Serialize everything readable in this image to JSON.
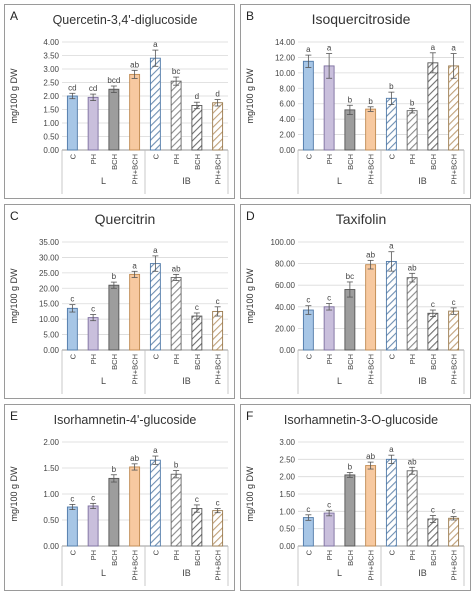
{
  "colors": {
    "C": "#a7c6e6",
    "PH": "#c9bfdc",
    "BCH": "#9d9d9d",
    "PH+BCH": "#f7c9a0",
    "IB_C": "#6f8fb2",
    "IB_PH": "#8c8c8c",
    "IB_BCH": "#6e6e6e",
    "IB_PHBCH": "#c0a17a",
    "frame": "#9a9a9a",
    "grid": "#d9d9d9"
  },
  "chart_data": [
    {
      "panel": "A",
      "title": "Quercetin-3,4'-diglucoside",
      "type": "bar",
      "ylabel": "mg/100 g DW",
      "ylim": [
        0,
        4.0
      ],
      "yticks": [
        "0.00",
        "0.50",
        "1.00",
        "1.50",
        "2.00",
        "2.50",
        "3.00",
        "3.50",
        "4.00"
      ],
      "categories": [
        "C",
        "PH",
        "BCH",
        "PH+BCH",
        "C",
        "PH",
        "BCH",
        "PH+BCH"
      ],
      "groups": [
        "L",
        "IB"
      ],
      "values": [
        2.0,
        1.95,
        2.25,
        2.8,
        3.4,
        2.55,
        1.65,
        1.75
      ],
      "errors": [
        0.1,
        0.12,
        0.12,
        0.15,
        0.3,
        0.15,
        0.12,
        0.12
      ],
      "letters": [
        "cd",
        "cd",
        "bcd",
        "ab",
        "a",
        "bc",
        "d",
        "d"
      ]
    },
    {
      "panel": "B",
      "title": "Isoquercitroside",
      "type": "bar",
      "ylabel": "mg/100 g DW",
      "ylim": [
        0,
        14.0
      ],
      "yticks": [
        "0.00",
        "2.00",
        "4.00",
        "6.00",
        "8.00",
        "10.00",
        "12.00",
        "14.00"
      ],
      "categories": [
        "C",
        "PH",
        "BCH",
        "PH+BCH",
        "C",
        "PH",
        "BCH",
        "PH+BCH"
      ],
      "groups": [
        "L",
        "IB"
      ],
      "values": [
        11.5,
        10.9,
        5.2,
        5.3,
        6.7,
        5.1,
        11.3,
        10.9
      ],
      "errors": [
        0.8,
        1.6,
        0.6,
        0.3,
        0.8,
        0.3,
        1.3,
        1.6
      ],
      "letters": [
        "a",
        "a",
        "b",
        "b",
        "b",
        "b",
        "a",
        "a"
      ]
    },
    {
      "panel": "C",
      "title": "Quercitrin",
      "type": "bar",
      "ylabel": "mg/100 g DW",
      "ylim": [
        0,
        35.0
      ],
      "yticks": [
        "0.00",
        "5.00",
        "10.00",
        "15.00",
        "20.00",
        "25.00",
        "30.00",
        "35.00"
      ],
      "categories": [
        "C",
        "PH",
        "BCH",
        "PH+BCH",
        "C",
        "PH",
        "BCH",
        "PH+BCH"
      ],
      "groups": [
        "L",
        "IB"
      ],
      "values": [
        13.5,
        10.5,
        21.0,
        24.5,
        28.0,
        23.5,
        11.0,
        12.5
      ],
      "errors": [
        1.2,
        1.0,
        1.0,
        1.0,
        2.5,
        1.0,
        1.0,
        1.5
      ],
      "letters": [
        "c",
        "c",
        "b",
        "a",
        "a",
        "ab",
        "c",
        "c"
      ]
    },
    {
      "panel": "D",
      "title": "Taxifolin",
      "type": "bar",
      "ylabel": "mg/100 g DW",
      "ylim": [
        0,
        100.0
      ],
      "yticks": [
        "0.00",
        "20.00",
        "40.00",
        "60.00",
        "80.00",
        "100.00"
      ],
      "categories": [
        "C",
        "PH",
        "BCH",
        "PH+BCH",
        "C",
        "PH",
        "BCH",
        "PH+BCH"
      ],
      "groups": [
        "L",
        "IB"
      ],
      "values": [
        37.0,
        40.0,
        56.0,
        79.0,
        82.0,
        67.0,
        34.0,
        36.0
      ],
      "errors": [
        4,
        3,
        7,
        4,
        9,
        4,
        3,
        3
      ],
      "letters": [
        "c",
        "c",
        "bc",
        "ab",
        "a",
        "ab",
        "c",
        "c"
      ]
    },
    {
      "panel": "E",
      "title": "Isorhamnetin-4'-glucoside",
      "type": "bar",
      "ylabel": "mg/100 g DW",
      "ylim": [
        0,
        2.0
      ],
      "yticks": [
        "0.00",
        "0.50",
        "1.00",
        "1.50",
        "2.00"
      ],
      "categories": [
        "C",
        "PH",
        "BCH",
        "PH+BCH",
        "C",
        "PH",
        "BCH",
        "PH+BCH"
      ],
      "groups": [
        "L",
        "IB"
      ],
      "values": [
        0.75,
        0.77,
        1.3,
        1.52,
        1.65,
        1.38,
        0.72,
        0.68
      ],
      "errors": [
        0.05,
        0.05,
        0.07,
        0.06,
        0.08,
        0.07,
        0.07,
        0.04
      ],
      "letters": [
        "c",
        "c",
        "b",
        "ab",
        "a",
        "b",
        "c",
        "c"
      ]
    },
    {
      "panel": "F",
      "title": "Isorhamnetin-3-O-glucoside",
      "type": "bar",
      "ylabel": "mg/100 g DW",
      "ylim": [
        0,
        3.0
      ],
      "yticks": [
        "0.00",
        "0.50",
        "1.00",
        "1.50",
        "2.00",
        "2.50",
        "3.00"
      ],
      "categories": [
        "C",
        "PH",
        "BCH",
        "PH+BCH",
        "C",
        "PH",
        "BCH",
        "PH+BCH"
      ],
      "groups": [
        "L",
        "IB"
      ],
      "values": [
        0.82,
        0.95,
        2.05,
        2.32,
        2.5,
        2.17,
        0.78,
        0.8
      ],
      "errors": [
        0.08,
        0.08,
        0.07,
        0.1,
        0.12,
        0.1,
        0.1,
        0.05
      ],
      "letters": [
        "c",
        "c",
        "b",
        "ab",
        "a",
        "ab",
        "c",
        "c"
      ]
    }
  ]
}
